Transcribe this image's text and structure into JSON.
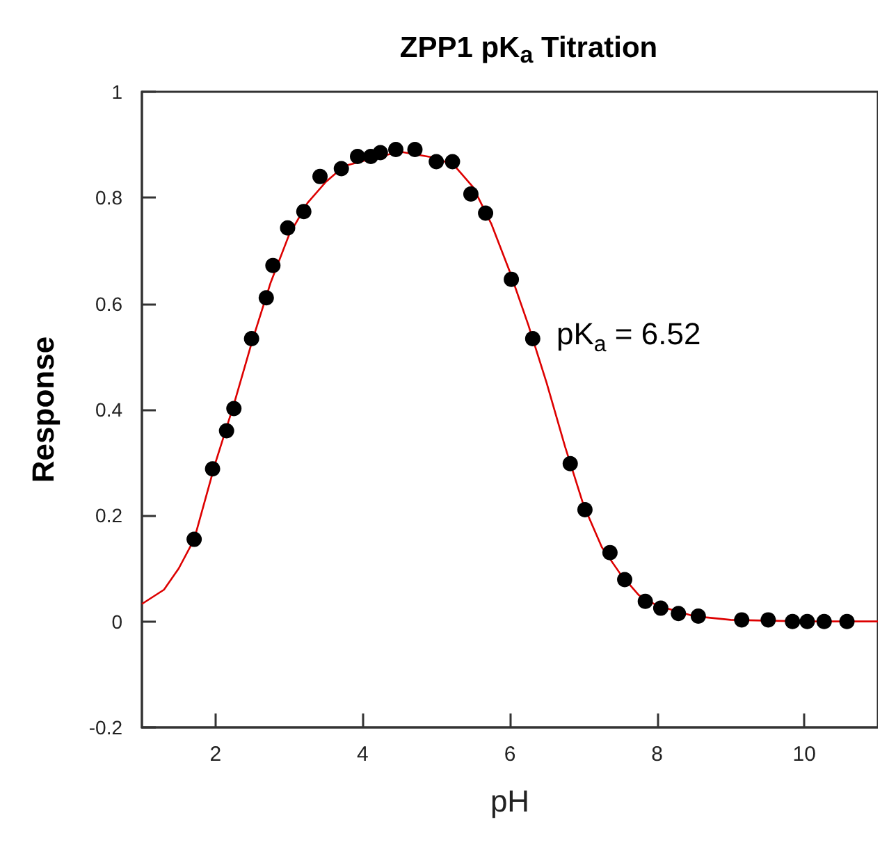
{
  "chart_data": {
    "type": "scatter",
    "title": "ZPP1 pK$_{a}$ Titration",
    "xlabel": "pH",
    "ylabel": "Response",
    "xlim": [
      1,
      11
    ],
    "xticks": [
      2,
      4,
      6,
      8,
      10
    ],
    "ylim": [
      -0.2,
      1
    ],
    "yticks": [
      -0.2,
      0,
      0.2,
      0.4,
      0.6,
      0.8,
      1
    ],
    "grid": false,
    "marker": "circle",
    "annotations": [
      "pK$_{a}$ = 6.52"
    ],
    "series": [
      {
        "color": "#000000",
        "x": [
          1.71,
          1.96,
          2.15,
          2.25,
          2.49,
          2.69,
          2.78,
          2.98,
          3.2,
          3.42,
          3.71,
          3.93,
          4.11,
          4.24,
          4.45,
          4.71,
          5.0,
          5.22,
          5.47,
          5.67,
          6.02,
          6.31,
          6.82,
          7.02,
          7.36,
          7.56,
          7.84,
          8.05,
          8.29,
          8.56,
          9.15,
          9.51,
          9.84,
          10.04,
          10.27,
          10.58
        ],
        "values": [
          0.155,
          0.288,
          0.36,
          0.402,
          0.534,
          0.611,
          0.672,
          0.743,
          0.774,
          0.84,
          0.855,
          0.878,
          0.878,
          0.885,
          0.891,
          0.891,
          0.868,
          0.868,
          0.807,
          0.771,
          0.646,
          0.534,
          0.298,
          0.211,
          0.13,
          0.079,
          0.038,
          0.025,
          0.015,
          0.01,
          0.003,
          0.003,
          0,
          0,
          0,
          0
        ]
      },
      {
        "type": "line",
        "color": "#dd0000",
        "marker": "none",
        "line_style": "solid",
        "x": [
          1,
          1.3,
          1.5,
          1.71,
          2,
          2.25,
          2.5,
          2.75,
          3,
          3.25,
          3.5,
          3.75,
          4.5,
          5,
          5.25,
          5.5,
          5.75,
          6,
          6.25,
          6.5,
          6.75,
          7,
          7.25,
          7.5,
          7.75,
          8,
          8.5,
          9,
          10,
          11
        ],
        "values": [
          0.033,
          0.06,
          0.1,
          0.155,
          0.3,
          0.41,
          0.53,
          0.64,
          0.73,
          0.79,
          0.83,
          0.86,
          0.887,
          0.875,
          0.86,
          0.82,
          0.75,
          0.66,
          0.56,
          0.45,
          0.33,
          0.22,
          0.14,
          0.09,
          0.05,
          0.03,
          0.01,
          0.003,
          0,
          0
        ]
      }
    ]
  }
}
